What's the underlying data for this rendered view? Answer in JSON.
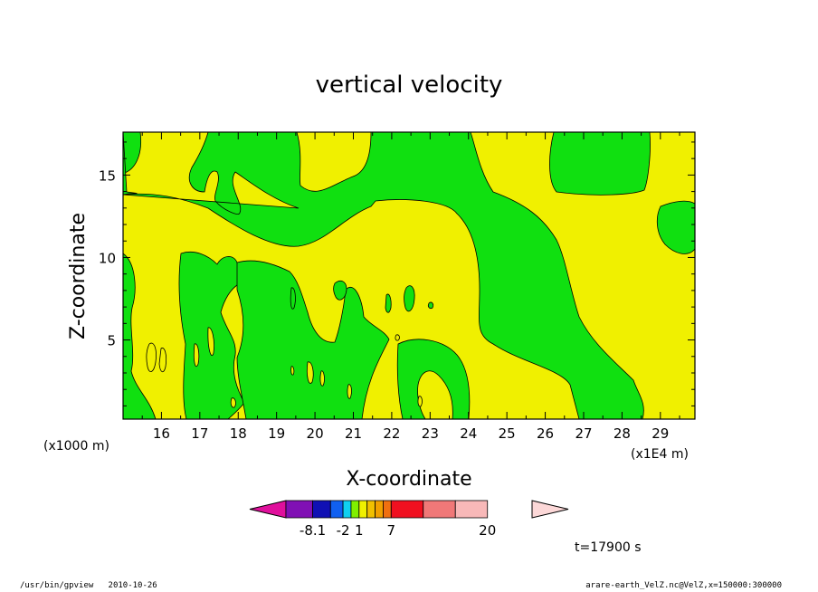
{
  "chart_data": {
    "type": "heatmap",
    "title": "vertical velocity",
    "xlabel": "X-coordinate",
    "ylabel": "Z-coordinate",
    "x_unit_left": "(x1000 m)",
    "x_unit_right": "(x1E4 m)",
    "xlim": [
      15.0,
      29.9
    ],
    "ylim": [
      0.2,
      17.6
    ],
    "xticks": [
      "16",
      "17",
      "18",
      "19",
      "20",
      "21",
      "22",
      "23",
      "24",
      "25",
      "26",
      "27",
      "28",
      "29"
    ],
    "yticks": [
      "5",
      "10",
      "15"
    ],
    "colorbar": {
      "colors": [
        "#e0109c",
        "#8010b4",
        "#1010b4",
        "#1060f0",
        "#10d0f0",
        "#80f000",
        "#f0f000",
        "#f0c000",
        "#f0a000",
        "#f07010",
        "#f01020",
        "#f07878",
        "#f8b8b8",
        "#fcd8d8"
      ],
      "tick_labels": [
        "-8.1",
        "-2",
        "1",
        "7",
        "20"
      ]
    },
    "time_label": "t=17900 s",
    "contour_fill_colors": {
      "positive": "#f0f000",
      "negative": "#10e010"
    }
  },
  "footer": {
    "left": "/usr/bin/gpview   2010-10-26",
    "right": "arare-earth_VelZ.nc@VelZ,x=150000:300000"
  }
}
